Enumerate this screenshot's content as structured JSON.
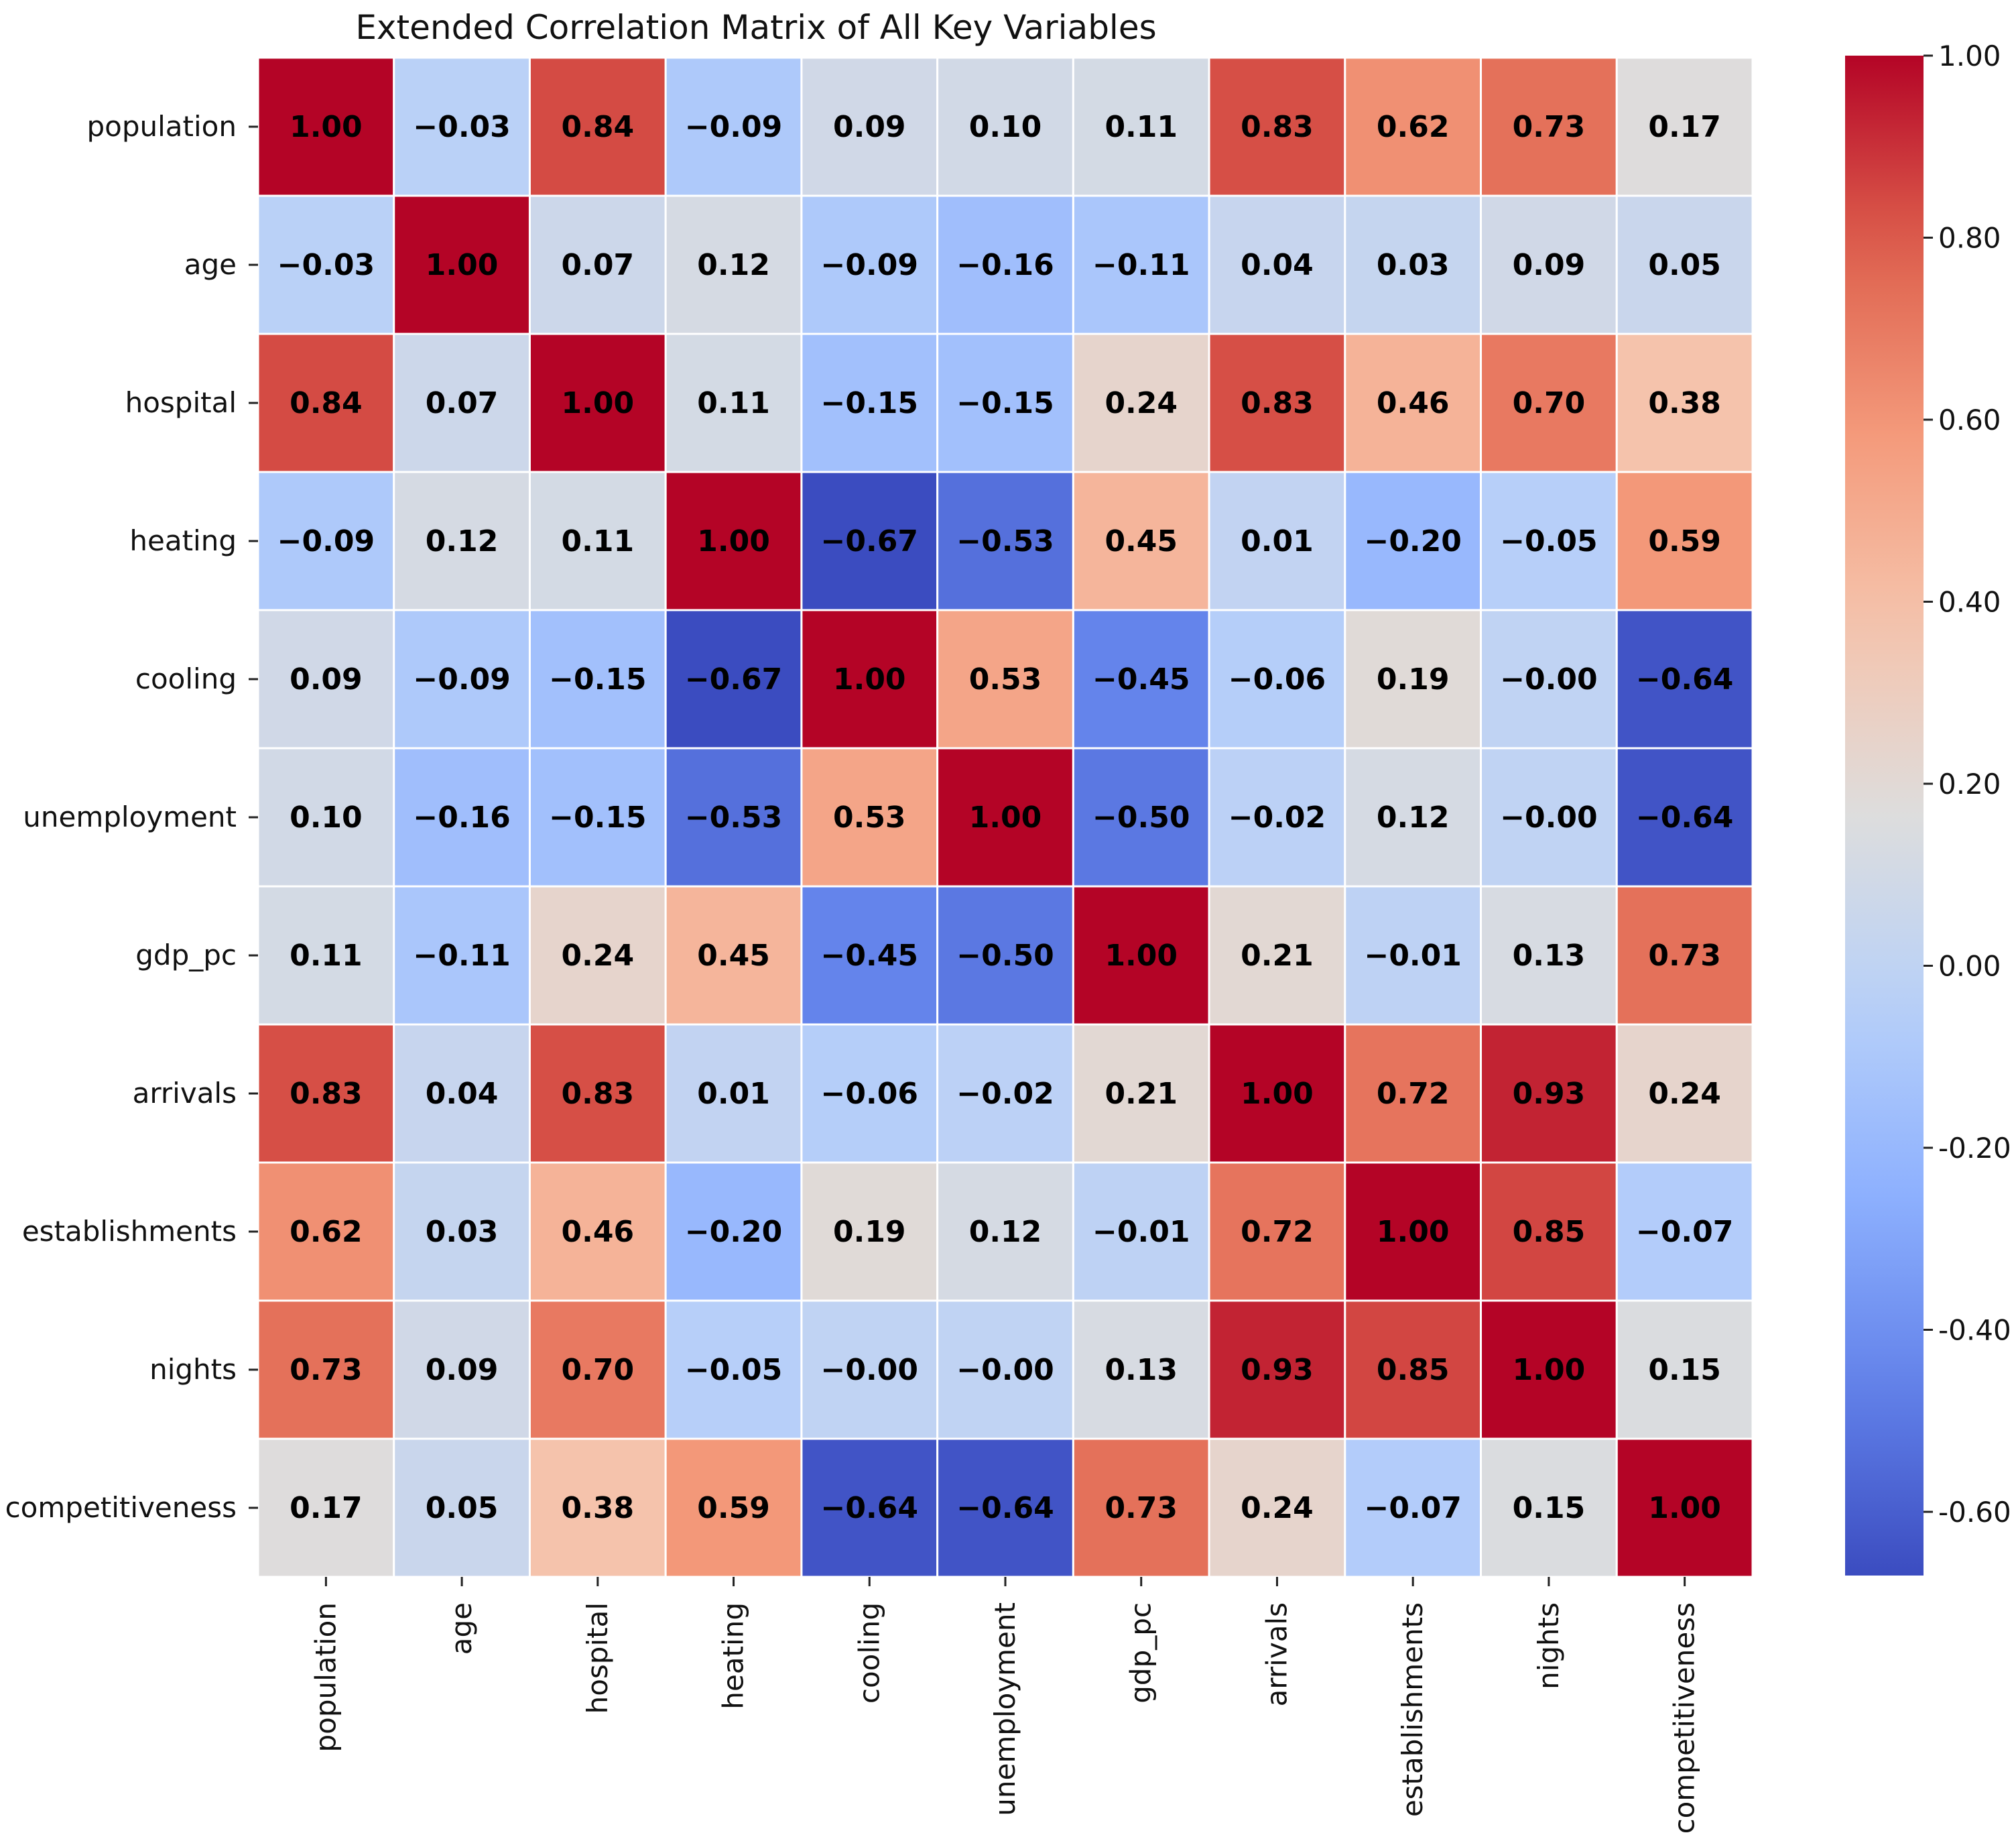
{
  "chart_data": {
    "type": "heatmap",
    "title": "Extended Correlation Matrix of All Key Variables",
    "variables": [
      "population",
      "age",
      "hospital",
      "heating",
      "cooling",
      "unemployment",
      "gdp_pc",
      "arrivals",
      "establishments",
      "nights",
      "competitiveness"
    ],
    "values": [
      [
        1.0,
        -0.03,
        0.84,
        -0.09,
        0.09,
        0.1,
        0.11,
        0.83,
        0.62,
        0.73,
        0.17
      ],
      [
        -0.03,
        1.0,
        0.07,
        0.12,
        -0.09,
        -0.16,
        -0.11,
        0.04,
        0.03,
        0.09,
        0.05
      ],
      [
        0.84,
        0.07,
        1.0,
        0.11,
        -0.15,
        -0.15,
        0.24,
        0.83,
        0.46,
        0.7,
        0.38
      ],
      [
        -0.09,
        0.12,
        0.11,
        1.0,
        -0.67,
        -0.53,
        0.45,
        0.01,
        -0.2,
        -0.05,
        0.59
      ],
      [
        0.09,
        -0.09,
        -0.15,
        -0.67,
        1.0,
        0.53,
        -0.45,
        -0.06,
        0.19,
        -0.0,
        -0.64
      ],
      [
        0.1,
        -0.16,
        -0.15,
        -0.53,
        0.53,
        1.0,
        -0.5,
        -0.02,
        0.12,
        -0.0,
        -0.64
      ],
      [
        0.11,
        -0.11,
        0.24,
        0.45,
        -0.45,
        -0.5,
        1.0,
        0.21,
        -0.01,
        0.13,
        0.73
      ],
      [
        0.83,
        0.04,
        0.83,
        0.01,
        -0.06,
        -0.02,
        0.21,
        1.0,
        0.72,
        0.93,
        0.24
      ],
      [
        0.62,
        0.03,
        0.46,
        -0.2,
        0.19,
        0.12,
        -0.01,
        0.72,
        1.0,
        0.85,
        -0.07
      ],
      [
        0.73,
        0.09,
        0.7,
        -0.05,
        -0.0,
        -0.0,
        0.13,
        0.93,
        0.85,
        1.0,
        0.15
      ],
      [
        0.17,
        0.05,
        0.38,
        0.59,
        -0.64,
        -0.64,
        0.73,
        0.24,
        -0.07,
        0.15,
        1.0
      ]
    ],
    "cell_labels": [
      [
        "1.00",
        "−0.03",
        "0.84",
        "−0.09",
        "0.09",
        "0.10",
        "0.11",
        "0.83",
        "0.62",
        "0.73",
        "0.17"
      ],
      [
        "−0.03",
        "1.00",
        "0.07",
        "0.12",
        "−0.09",
        "−0.16",
        "−0.11",
        "0.04",
        "0.03",
        "0.09",
        "0.05"
      ],
      [
        "0.84",
        "0.07",
        "1.00",
        "0.11",
        "−0.15",
        "−0.15",
        "0.24",
        "0.83",
        "0.46",
        "0.70",
        "0.38"
      ],
      [
        "−0.09",
        "0.12",
        "0.11",
        "1.00",
        "−0.67",
        "−0.53",
        "0.45",
        "0.01",
        "−0.20",
        "−0.05",
        "0.59"
      ],
      [
        "0.09",
        "−0.09",
        "−0.15",
        "−0.67",
        "1.00",
        "0.53",
        "−0.45",
        "−0.06",
        "0.19",
        "−0.00",
        "−0.64"
      ],
      [
        "0.10",
        "−0.16",
        "−0.15",
        "−0.53",
        "0.53",
        "1.00",
        "−0.50",
        "−0.02",
        "0.12",
        "−0.00",
        "−0.64"
      ],
      [
        "0.11",
        "−0.11",
        "0.24",
        "0.45",
        "−0.45",
        "−0.50",
        "1.00",
        "0.21",
        "−0.01",
        "0.13",
        "0.73"
      ],
      [
        "0.83",
        "0.04",
        "0.83",
        "0.01",
        "−0.06",
        "−0.02",
        "0.21",
        "1.00",
        "0.72",
        "0.93",
        "0.24"
      ],
      [
        "0.62",
        "0.03",
        "0.46",
        "−0.20",
        "0.19",
        "0.12",
        "−0.01",
        "0.72",
        "1.00",
        "0.85",
        "−0.07"
      ],
      [
        "0.73",
        "0.09",
        "0.70",
        "−0.05",
        "−0.00",
        "−0.00",
        "0.13",
        "0.93",
        "0.85",
        "1.00",
        "0.15"
      ],
      [
        "0.17",
        "0.05",
        "0.38",
        "0.59",
        "−0.64",
        "−0.64",
        "0.73",
        "0.24",
        "−0.07",
        "0.15",
        "1.00"
      ]
    ],
    "colormap": "coolwarm",
    "vmin": -0.67,
    "vmax": 1.0,
    "colorbar": {
      "ticks": [
        1.0,
        0.8,
        0.6,
        0.4,
        0.2,
        0.0,
        -0.2,
        -0.4,
        -0.6
      ],
      "tick_labels": [
        "1.00",
        "0.80",
        "0.60",
        "0.40",
        "0.20",
        "0.00",
        "-0.20",
        "-0.40",
        "-0.60"
      ]
    },
    "xlabel": "",
    "ylabel": "",
    "cell_border_color": "#ffffff"
  }
}
